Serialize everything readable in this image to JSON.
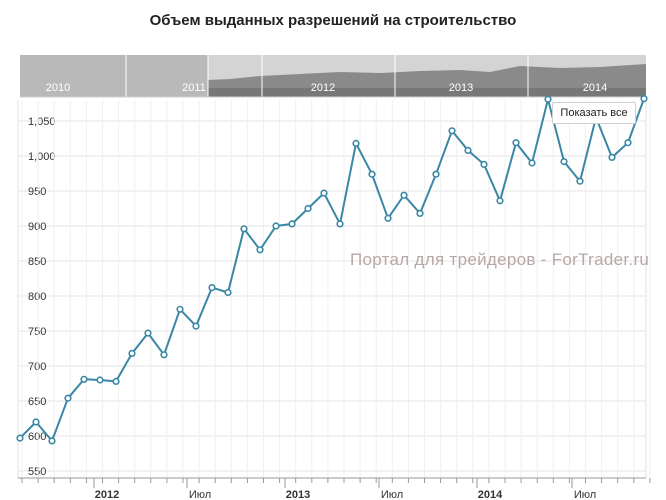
{
  "title": "Объем выданных разрешений на строительство",
  "watermark": "Портал для трейдеров - ForTrader.ru",
  "reset_button_label": "Показать все",
  "navigator_labels": [
    "2010",
    "2011",
    "2012",
    "2013",
    "2014"
  ],
  "colors": {
    "line": "#3a87a5",
    "marker_fill": "#ffffff",
    "nav_light": "#b9b9b9",
    "nav_dark": "#777777",
    "nav_area": "#8a8a8a"
  },
  "chart_data": {
    "type": "line",
    "title": "Объем выданных разрешений на строительство",
    "xlabel": "",
    "ylabel": "",
    "ylim": [
      540,
      1080
    ],
    "y_ticks": [
      "550",
      "600",
      "650",
      "700",
      "750",
      "800",
      "850",
      "900",
      "950",
      "1,000",
      "1,050"
    ],
    "x_ticks": [
      "2012",
      "Июл",
      "2013",
      "Июл",
      "2014",
      "Июл"
    ],
    "grid": true,
    "series": [
      {
        "values": [
          597,
          620,
          593,
          654,
          681,
          680,
          678,
          718,
          747,
          716,
          781,
          757,
          812,
          805,
          896,
          866,
          900,
          903,
          925,
          947,
          903,
          1018,
          974,
          911,
          944,
          918,
          974,
          1036,
          1008,
          988,
          936,
          1019,
          990,
          1081,
          992,
          964,
          1055,
          998,
          1019,
          1082
        ]
      }
    ]
  }
}
